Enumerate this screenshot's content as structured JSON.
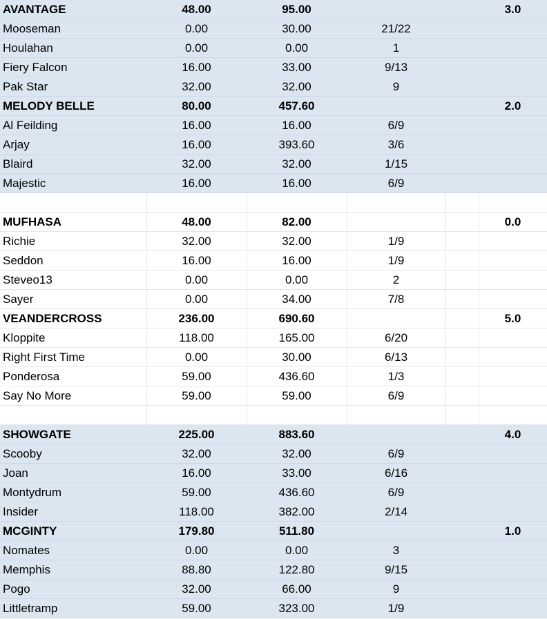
{
  "groups": [
    {
      "shaded": true,
      "teams": [
        {
          "name": "AVANTAGE",
          "c1": "48.00",
          "c2": "95.00",
          "c5": "3.0",
          "members": [
            [
              "Mooseman",
              "0.00",
              "30.00",
              "21/22"
            ],
            [
              "Houlahan",
              "0.00",
              "0.00",
              "1"
            ],
            [
              "Fiery Falcon",
              "16.00",
              "33.00",
              "9/13"
            ],
            [
              "Pak Star",
              "32.00",
              "32.00",
              "9"
            ]
          ]
        },
        {
          "name": "MELODY BELLE",
          "c1": "80.00",
          "c2": "457.60",
          "c5": "2.0",
          "members": [
            [
              "Al Feilding",
              "16.00",
              "16.00",
              "6/9"
            ],
            [
              "Arjay",
              "16.00",
              "393.60",
              "3/6"
            ],
            [
              "Blaird",
              "32.00",
              "32.00",
              "1/15"
            ],
            [
              "Majestic",
              "16.00",
              "16.00",
              "6/9"
            ]
          ]
        }
      ]
    },
    {
      "shaded": false,
      "teams": [
        {
          "name": "MUFHASA",
          "c1": "48.00",
          "c2": "82.00",
          "c5": "0.0",
          "members": [
            [
              "Richie",
              "32.00",
              "32.00",
              "1/9"
            ],
            [
              "Seddon",
              "16.00",
              "16.00",
              "1/9"
            ],
            [
              "Steveo13",
              "0.00",
              "0.00",
              "2"
            ],
            [
              "Sayer",
              "0.00",
              "34.00",
              "7/8"
            ]
          ]
        },
        {
          "name": "VEANDERCROSS",
          "c1": "236.00",
          "c2": "690.60",
          "c5": "5.0",
          "members": [
            [
              "Kloppite",
              "118.00",
              "165.00",
              "6/20"
            ],
            [
              "Right First Time",
              "0.00",
              "30.00",
              "6/13"
            ],
            [
              "Ponderosa",
              "59.00",
              "436.60",
              "1/3"
            ],
            [
              "Say No More",
              "59.00",
              "59.00",
              "6/9"
            ]
          ]
        }
      ]
    },
    {
      "shaded": true,
      "teams": [
        {
          "name": "SHOWGATE",
          "c1": "225.00",
          "c2": "883.60",
          "c5": "4.0",
          "members": [
            [
              "Scooby",
              "32.00",
              "32.00",
              "6/9"
            ],
            [
              "Joan",
              "16.00",
              "33.00",
              "6/16"
            ],
            [
              "Montydrum",
              "59.00",
              "436.60",
              "6/9"
            ],
            [
              "Insider",
              "118.00",
              "382.00",
              "2/14"
            ]
          ]
        },
        {
          "name": "MCGINTY",
          "c1": "179.80",
          "c2": "511.80",
          "c5": "1.0",
          "members": [
            [
              "Nomates",
              "0.00",
              "0.00",
              "3"
            ],
            [
              "Memphis",
              "88.80",
              "122.80",
              "9/15"
            ],
            [
              "Pogo",
              "32.00",
              "66.00",
              "9"
            ],
            [
              "Littletramp",
              "59.00",
              "323.00",
              "1/9"
            ]
          ]
        }
      ]
    }
  ]
}
